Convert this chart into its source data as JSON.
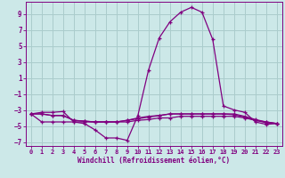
{
  "bg_color": "#cce8e8",
  "grid_color": "#aacccc",
  "line_color": "#800080",
  "xlabel": "Windchill (Refroidissement éolien,°C)",
  "xlim": [
    -0.5,
    23.5
  ],
  "ylim": [
    -7.5,
    10.5
  ],
  "xticks": [
    0,
    1,
    2,
    3,
    4,
    5,
    6,
    7,
    8,
    9,
    10,
    11,
    12,
    13,
    14,
    15,
    16,
    17,
    18,
    19,
    20,
    21,
    22,
    23
  ],
  "yticks": [
    -7,
    -5,
    -3,
    -1,
    1,
    3,
    5,
    7,
    9
  ],
  "series": [
    {
      "x": [
        0,
        1,
        2,
        3,
        4,
        5,
        6,
        7,
        8,
        9,
        10,
        11,
        12,
        13,
        14,
        15,
        16,
        17,
        18,
        19,
        20,
        21,
        22,
        23
      ],
      "y": [
        -3.5,
        -3.3,
        -3.3,
        -3.2,
        -4.5,
        -4.7,
        -5.5,
        -6.5,
        -6.5,
        -6.8,
        -3.7,
        2.0,
        6.0,
        8.0,
        9.2,
        9.8,
        9.2,
        5.8,
        -2.5,
        -3.0,
        -3.3,
        -4.5,
        -4.8,
        -4.7
      ]
    },
    {
      "x": [
        0,
        1,
        2,
        3,
        4,
        5,
        6,
        7,
        8,
        9,
        10,
        11,
        12,
        13,
        14,
        15,
        16,
        17,
        18,
        19,
        20,
        21,
        22,
        23
      ],
      "y": [
        -3.5,
        -4.5,
        -4.5,
        -4.5,
        -4.5,
        -4.5,
        -4.5,
        -4.5,
        -4.5,
        -4.5,
        -4.3,
        -4.2,
        -4.0,
        -4.0,
        -3.8,
        -3.8,
        -3.8,
        -3.8,
        -3.8,
        -3.8,
        -4.0,
        -4.3,
        -4.5,
        -4.7
      ]
    },
    {
      "x": [
        0,
        1,
        2,
        3,
        4,
        5,
        6,
        7,
        8,
        9,
        10,
        11,
        12,
        13,
        14,
        15,
        16,
        17,
        18,
        19,
        20,
        21,
        22,
        23
      ],
      "y": [
        -3.5,
        -3.5,
        -3.7,
        -3.7,
        -4.3,
        -4.4,
        -4.5,
        -4.5,
        -4.5,
        -4.3,
        -4.0,
        -3.8,
        -3.7,
        -3.5,
        -3.5,
        -3.5,
        -3.5,
        -3.5,
        -3.5,
        -3.5,
        -3.8,
        -4.2,
        -4.5,
        -4.7
      ]
    },
    {
      "x": [
        0,
        1,
        2,
        3,
        4,
        5,
        6,
        7,
        8,
        9,
        10,
        11,
        12,
        13,
        14,
        15,
        16,
        17,
        18,
        19,
        20,
        21,
        22,
        23
      ],
      "y": [
        -3.5,
        -3.5,
        -3.7,
        -3.7,
        -4.3,
        -4.4,
        -4.5,
        -4.5,
        -4.5,
        -4.3,
        -4.1,
        -3.9,
        -3.7,
        -3.5,
        -3.5,
        -3.5,
        -3.5,
        -3.5,
        -3.5,
        -3.6,
        -3.9,
        -4.3,
        -4.6,
        -4.7
      ]
    }
  ]
}
